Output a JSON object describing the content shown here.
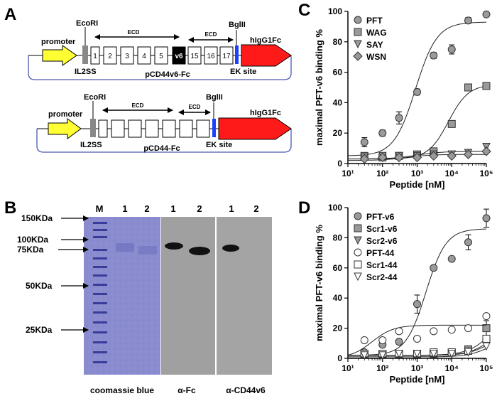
{
  "panel_labels": [
    "A",
    "B",
    "C",
    "D"
  ],
  "panel_a": {
    "construct1": {
      "name": "pCD44v6-Fc",
      "promoter": "promoter",
      "signal": "IL2SS",
      "site_left": "EcoRI",
      "site_right": "BglII",
      "ek": "EK site",
      "fc": "hIgG1Fc",
      "ecd": "ECD",
      "exons": [
        "1",
        "2",
        "3",
        "4",
        "5",
        "v6",
        "15",
        "16",
        "17"
      ]
    },
    "construct2": {
      "name": "pCD44-Fc",
      "promoter": "promoter",
      "signal": "IL2SS",
      "site_left": "EcoRI",
      "site_right": "BglII",
      "ek": "EK site",
      "fc": "hIgG1Fc",
      "ecd": "ECD"
    }
  },
  "panel_b": {
    "marker_lane": "M",
    "lane_numbers": [
      "1",
      "2",
      "1",
      "2",
      "1",
      "2"
    ],
    "ladder": [
      "150KDa",
      "100KDa",
      "75KDa",
      "50KDa",
      "25KDa"
    ],
    "stains": [
      "coomassie blue",
      "α-Fc",
      "α-CD44v6"
    ]
  },
  "chart_data": [
    {
      "type": "scatter",
      "panel": "C",
      "xlabel": "Peptide [nM]",
      "ylabel": "maximal PFT-v6 binding %",
      "xscale": "log",
      "xlim": [
        10,
        100000
      ],
      "ylim": [
        0,
        100
      ],
      "xticks": [
        "10¹",
        "10²",
        "10³",
        "10⁴",
        "10⁵"
      ],
      "yticks": [
        0,
        20,
        40,
        60,
        80,
        100
      ],
      "legend_position": "top-left",
      "series": [
        {
          "name": "PFT",
          "marker": "circle",
          "x": [
            30,
            100,
            300,
            1000,
            3000,
            10000,
            30000,
            100000
          ],
          "y": [
            14,
            20,
            30,
            47,
            71,
            75,
            94,
            98
          ],
          "err": [
            3,
            2,
            4,
            2,
            2,
            3,
            2,
            1
          ],
          "fit": {
            "bottom": 5,
            "top": 93,
            "ec50": 900,
            "hill": 1.4
          }
        },
        {
          "name": "WAG",
          "marker": "square",
          "x": [
            30,
            100,
            300,
            1000,
            3000,
            10000,
            30000,
            100000
          ],
          "y": [
            5,
            4,
            5,
            6,
            8,
            26,
            50,
            51
          ],
          "err": [
            0,
            0,
            0,
            0,
            0,
            0,
            0,
            0
          ],
          "fit": {
            "bottom": 3,
            "top": 52,
            "ec50": 8000,
            "hill": 1.5
          }
        },
        {
          "name": "SAY",
          "marker": "triangle-down",
          "x": [
            30,
            100,
            300,
            1000,
            3000,
            10000,
            30000,
            100000
          ],
          "y": [
            4,
            5,
            5,
            5,
            6,
            6,
            7,
            11
          ],
          "err": [
            0,
            0,
            0,
            0,
            0,
            0,
            0,
            0
          ],
          "fit": {
            "bottom": 3,
            "top": 8,
            "ec50": 1000,
            "hill": 1.2
          }
        },
        {
          "name": "WSN",
          "marker": "diamond",
          "x": [
            30,
            100,
            300,
            1000,
            3000,
            10000,
            30000,
            100000
          ],
          "y": [
            3,
            4,
            4,
            4,
            5,
            5,
            6,
            8
          ],
          "err": [
            0,
            0,
            0,
            0,
            0,
            0,
            0,
            0
          ],
          "fit": {
            "bottom": 2,
            "top": 6,
            "ec50": 500,
            "hill": 1.2
          }
        }
      ]
    },
    {
      "type": "scatter",
      "panel": "D",
      "xlabel": "Peptide [nM]",
      "ylabel": "maximal PFT-v6 binding %",
      "xscale": "log",
      "xlim": [
        10,
        100000
      ],
      "ylim": [
        0,
        100
      ],
      "xticks": [
        "10¹",
        "10²",
        "10³",
        "10⁴",
        "10⁵"
      ],
      "yticks": [
        0,
        20,
        40,
        60,
        80,
        100
      ],
      "legend_position": "top-left",
      "series": [
        {
          "name": "PFT-v6",
          "marker": "circle",
          "x": [
            30,
            100,
            300,
            1000,
            3000,
            10000,
            30000,
            100000
          ],
          "y": [
            4,
            9,
            11,
            36,
            60,
            66,
            77,
            93
          ],
          "err": [
            0,
            0,
            0,
            6,
            0,
            0,
            5,
            6
          ],
          "fit": {
            "bottom": 2,
            "top": 86,
            "ec50": 1800,
            "hill": 1.5
          }
        },
        {
          "name": "Scr1-v6",
          "marker": "square",
          "x": [
            30,
            100,
            300,
            1000,
            3000,
            10000,
            30000,
            100000
          ],
          "y": [
            3,
            3,
            3,
            3,
            3,
            4,
            6,
            20
          ],
          "err": [
            0,
            0,
            0,
            0,
            0,
            0,
            0,
            5
          ],
          "fit": {
            "bottom": 2,
            "top": 40,
            "ec50": 200000,
            "hill": 1.2
          }
        },
        {
          "name": "Scr2-v6",
          "marker": "triangle-down",
          "x": [
            30,
            100,
            300,
            1000,
            3000,
            10000,
            30000,
            100000
          ],
          "y": [
            2,
            2,
            3,
            3,
            3,
            3,
            4,
            10
          ],
          "err": [
            0,
            0,
            0,
            0,
            0,
            0,
            0,
            0
          ],
          "fit": {
            "bottom": 2,
            "top": 15,
            "ec50": 100000,
            "hill": 1.5
          }
        },
        {
          "name": "PFT-44",
          "marker": "circle-open",
          "x": [
            30,
            100,
            300,
            1000,
            3000,
            10000,
            30000,
            100000
          ],
          "y": [
            12,
            12,
            18,
            13,
            18,
            19,
            20,
            28
          ],
          "err": [
            0,
            0,
            0,
            0,
            0,
            0,
            0,
            0
          ],
          "fit": {
            "bottom": 0,
            "top": 22,
            "ec50": 50,
            "hill": 1.4
          }
        },
        {
          "name": "Scr1-44",
          "marker": "square-open",
          "x": [
            30,
            100,
            300,
            1000,
            3000,
            10000,
            30000,
            100000
          ],
          "y": [
            3,
            3,
            3,
            3,
            4,
            4,
            5,
            13
          ],
          "err": [
            0,
            0,
            0,
            0,
            0,
            0,
            0,
            0
          ],
          "fit": {
            "bottom": 2,
            "top": 20,
            "ec50": 120000,
            "hill": 1.4
          }
        },
        {
          "name": "Scr2-44",
          "marker": "triangle-down-open",
          "x": [
            30,
            100,
            300,
            1000,
            3000,
            10000,
            30000,
            100000
          ],
          "y": [
            2,
            2,
            3,
            3,
            3,
            3,
            4,
            8
          ],
          "err": [
            0,
            0,
            0,
            0,
            0,
            0,
            0,
            0
          ],
          "fit": {
            "bottom": 1,
            "top": 12,
            "ec50": 100000,
            "hill": 1.5
          }
        }
      ]
    }
  ]
}
